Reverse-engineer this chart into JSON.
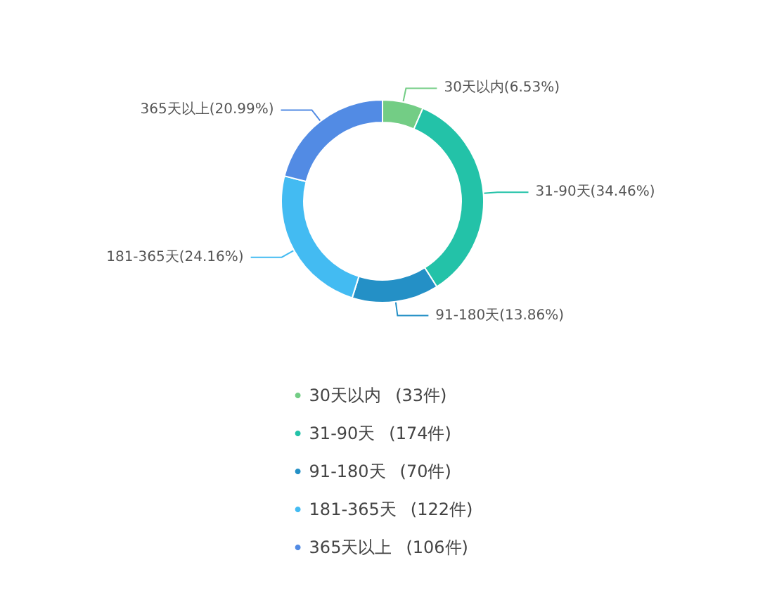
{
  "chart_data": {
    "type": "donut",
    "categories": [
      "30天以内",
      "31-90天",
      "91-180天",
      "181-365天",
      "365天以上"
    ],
    "values": [
      6.53,
      34.46,
      13.86,
      24.16,
      20.99
    ],
    "colors": [
      "#73cd85",
      "#23c2a8",
      "#2490c6",
      "#43bbf2",
      "#528be4"
    ],
    "value_labels": [
      "(6.53%)",
      "(34.46%)",
      "(13.86%)",
      "(24.16%)",
      "(20.99%)"
    ],
    "annotations": [
      "(33件)",
      "(174件)",
      "(70件)",
      "(122件)",
      "(106件)"
    ],
    "legend": "bottom"
  }
}
